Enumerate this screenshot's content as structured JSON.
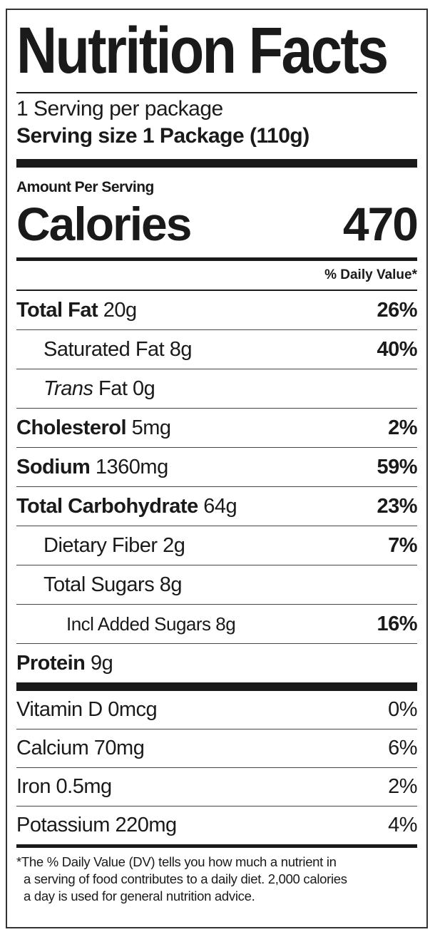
{
  "title": "Nutrition Facts",
  "servings_per_package": "1 Serving per package",
  "serving_size": "Serving size  1 Package (110g)",
  "amount_per_serving": "Amount Per Serving",
  "calories": {
    "label": "Calories",
    "value": "470"
  },
  "daily_value_header": "% Daily Value*",
  "nutrients": [
    {
      "name": "Total Fat",
      "amount": "20g",
      "dv": "26%"
    },
    {
      "name": "Saturated Fat",
      "amount": "8g",
      "dv": "40%"
    },
    {
      "name": "Trans",
      "name_rest": "Fat",
      "amount": "0g",
      "dv": ""
    },
    {
      "name": "Cholesterol",
      "amount": "5mg",
      "dv": "2%"
    },
    {
      "name": "Sodium",
      "amount": "1360mg",
      "dv": "59%"
    },
    {
      "name": "Total Carbohydrate",
      "amount": "64g",
      "dv": "23%"
    },
    {
      "name": "Dietary Fiber",
      "amount": "2g",
      "dv": "7%"
    },
    {
      "name": "Total Sugars",
      "amount": "8g",
      "dv": ""
    },
    {
      "name": "Incl Added Sugars",
      "amount": "8g",
      "dv": "16%"
    },
    {
      "name": "Protein",
      "amount": "9g",
      "dv": ""
    }
  ],
  "vitamins": [
    {
      "label": "Vitamin D 0mcg",
      "dv": "0%"
    },
    {
      "label": "Calcium 70mg",
      "dv": "6%"
    },
    {
      "label": "Iron 0.5mg",
      "dv": "2%"
    },
    {
      "label": "Potassium 220mg",
      "dv": "4%"
    }
  ],
  "footnote": [
    "*The % Daily Value (DV) tells you how much a nutrient in",
    "a serving of food contributes to a daily diet. 2,000 calories",
    "a day is used for general nutrition advice."
  ]
}
